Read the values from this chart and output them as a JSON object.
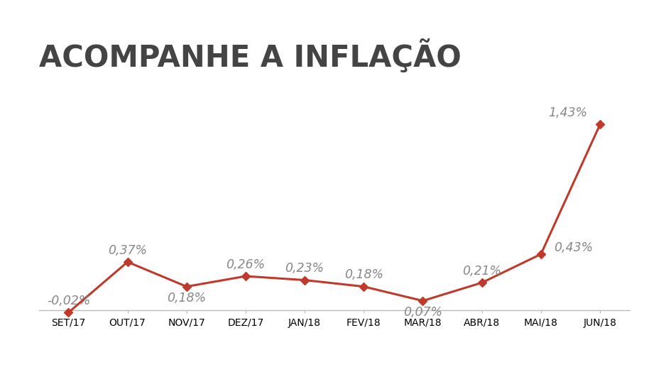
{
  "title": "ACOMPANHE A INFLAÇÃO",
  "categories": [
    "SET/17",
    "OUT/17",
    "NOV/17",
    "DEZ/17",
    "JAN/18",
    "FEV/18",
    "MAR/18",
    "ABR/18",
    "MAI/18",
    "JUN/18"
  ],
  "values": [
    -0.02,
    0.37,
    0.18,
    0.26,
    0.23,
    0.18,
    0.07,
    0.21,
    0.43,
    1.43
  ],
  "labels": [
    "-0,02%",
    "0,37%",
    "0,18%",
    "0,26%",
    "0,23%",
    "0,18%",
    "0,07%",
    "0,21%",
    "0,43%",
    "1,43%"
  ],
  "line_color": "#C0392B",
  "marker_color": "#C0392B",
  "label_color": "#888888",
  "title_color": "#444444",
  "background_color": "#FFFFFF",
  "title_fontsize": 30,
  "label_fontsize": 12.5,
  "tick_fontsize": 11,
  "ylim": [
    -0.25,
    1.85
  ],
  "xlim": [
    -0.5,
    9.5
  ],
  "zero_line_y": -0.02,
  "label_offsets_x": [
    0.0,
    0.0,
    0.0,
    0.0,
    0.0,
    0.0,
    0.0,
    0.0,
    0.55,
    -0.55
  ],
  "label_offsets_y": [
    0.09,
    0.09,
    -0.09,
    0.09,
    0.09,
    0.09,
    -0.09,
    0.09,
    0.05,
    0.09
  ]
}
